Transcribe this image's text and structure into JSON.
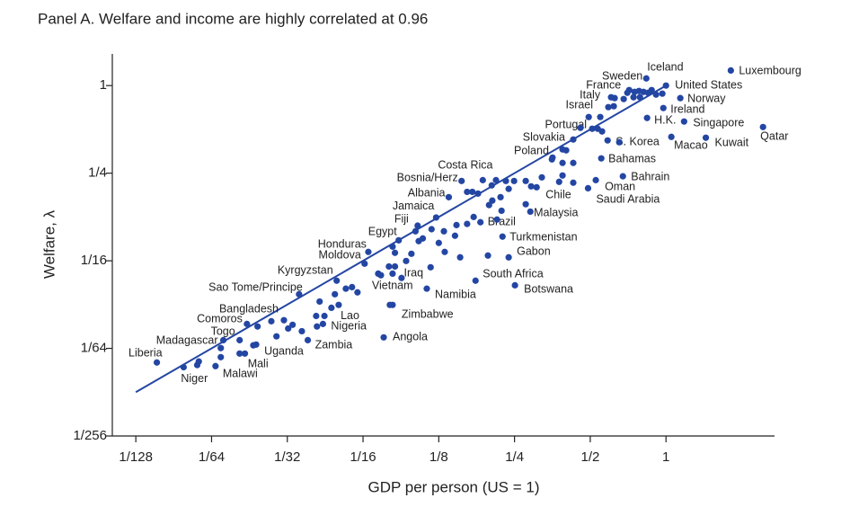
{
  "chart_data": {
    "type": "scatter",
    "title": "Panel A. Welfare and income are highly correlated at 0.96",
    "x_label": "GDP per person (US = 1)",
    "y_label": "Welfare, λ",
    "xlog": true,
    "ylog": true,
    "color": "#2446a3",
    "xlim": [
      0.0063,
      2.7
    ],
    "ylim": [
      0.00390625,
      1.65
    ],
    "xticks": [
      {
        "value": 0.0078125,
        "label": "1/128"
      },
      {
        "value": 0.015625,
        "label": "1/64"
      },
      {
        "value": 0.03125,
        "label": "1/32"
      },
      {
        "value": 0.0625,
        "label": "1/16"
      },
      {
        "value": 0.125,
        "label": "1/8"
      },
      {
        "value": 0.25,
        "label": "1/4"
      },
      {
        "value": 0.5,
        "label": "1/2"
      },
      1
    ],
    "yticks": [
      {
        "value": 0.00390625,
        "label": "1/256"
      },
      {
        "value": 0.015625,
        "label": "1/64"
      },
      {
        "value": 0.0625,
        "label": "1/16"
      },
      {
        "value": 0.25,
        "label": "1/4"
      },
      1
    ],
    "fit_line": {
      "x": [
        0.0078125,
        1
      ],
      "y": [
        0.0078125,
        1
      ]
    },
    "labels": [
      "Luxembourg",
      "Iceland",
      "Sweden",
      "France",
      "United States",
      "Italy",
      "Norway",
      "Israel",
      "Ireland",
      "H.K.",
      "Singapore",
      "Qatar",
      "Portugal",
      "Slovakia",
      "S. Korea",
      "Macao",
      "Kuwait",
      "Poland",
      "Bahamas",
      "Costa Rica",
      "Bosnia/Herz",
      "Bahrain",
      "Oman",
      "Albania",
      "Chile",
      "Saudi Arabia",
      "Jamaica",
      "Malaysia",
      "Fiji",
      "Brazil",
      "Egypt",
      "Turkmenistan",
      "Honduras",
      "Moldova",
      "Gabon",
      "Kyrgyzstan",
      "Iraq",
      "South Africa",
      "Sao Tome/Principe",
      "Vietnam",
      "Namibia",
      "Botswana",
      "Bangladesh",
      "Lao",
      "Comoros",
      "Zimbabwe",
      "Nigeria",
      "Togo",
      "Madagascar",
      "Angola",
      "Zambia",
      "Uganda",
      "Liberia",
      "Mali",
      "Niger",
      "Malawi",
      null,
      null,
      null,
      null,
      null,
      null,
      null,
      null,
      null,
      null,
      null,
      null,
      null,
      null,
      null,
      null,
      null,
      null,
      null,
      null,
      null,
      null,
      null,
      null,
      null,
      null,
      null,
      null,
      null,
      null,
      null,
      null,
      null,
      null,
      null,
      null,
      null,
      null,
      null,
      null,
      null,
      null,
      null,
      null,
      null,
      null,
      null,
      null,
      null,
      null,
      null,
      null,
      null,
      null,
      null,
      null,
      null,
      null,
      null,
      null,
      null,
      null,
      null,
      null,
      null,
      null,
      null,
      null,
      null,
      null,
      null,
      null,
      null,
      null,
      null,
      null,
      null,
      null,
      null,
      null,
      null,
      null,
      null,
      null,
      null,
      null,
      null
    ],
    "x": [
      1.81,
      0.835,
      0.714,
      0.702,
      1,
      0.605,
      1.14,
      0.59,
      0.976,
      0.841,
      1.18,
      2.43,
      0.509,
      0.428,
      0.586,
      1.05,
      1.44,
      0.354,
      0.553,
      0.187,
      0.154,
      0.674,
      0.526,
      0.137,
      0.306,
      0.49,
      0.122,
      0.277,
      0.103,
      0.183,
      0.0866,
      0.224,
      0.0656,
      0.0634,
      0.237,
      0.0491,
      0.0837,
      0.175,
      0.0348,
      0.0736,
      0.112,
      0.251,
      0.0303,
      0.0439,
      0.0216,
      0.0819,
      0.0433,
      0.0202,
      0.0174,
      0.0755,
      0.0377,
      0.0235,
      0.00947,
      0.0202,
      0.0121,
      0.0162,
      0.75,
      0.781,
      0.814,
      0.848,
      0.788,
      0.743,
      0.679,
      0.877,
      0.913,
      0.967,
      0.62,
      0.625,
      0.493,
      0.535,
      0.557,
      0.652,
      0.548,
      0.457,
      0.352,
      0.388,
      0.401,
      0.388,
      0.428,
      0.388,
      0.321,
      0.291,
      0.249,
      0.231,
      0.211,
      0.203,
      0.237,
      0.277,
      0.376,
      0.428,
      0.179,
      0.162,
      0.17,
      0.22,
      0.204,
      0.198,
      0.222,
      0.289,
      0.213,
      0.172,
      0.162,
      0.131,
      0.145,
      0.147,
      0.117,
      0.125,
      0.101,
      0.104,
      0.108,
      0.0819,
      0.0837,
      0.0927,
      0.0973,
      0.132,
      0.152,
      0.196,
      0.116,
      0.0792,
      0.0819,
      0.0718,
      0.0889,
      0.0565,
      0.0594,
      0.0534,
      0.0483,
      0.042,
      0.0407,
      0.05,
      0.0328,
      0.0283,
      0.027,
      0.0315,
      0.041,
      0.0357,
      0.0238,
      0.0229,
      0.0212,
      0.017,
      0.017,
      0.0139,
      0.0137,
      0.0799,
      0.0468
    ],
    "y": [
      1.27,
      1.12,
      0.931,
      0.892,
      1,
      0.831,
      0.82,
      0.711,
      0.701,
      0.599,
      0.566,
      0.519,
      0.505,
      0.426,
      0.42,
      0.444,
      0.438,
      0.32,
      0.316,
      0.224,
      0.221,
      0.238,
      0.224,
      0.171,
      0.2,
      0.197,
      0.124,
      0.153,
      0.109,
      0.115,
      0.0864,
      0.0916,
      0.0719,
      0.0597,
      0.066,
      0.0456,
      0.0571,
      0.0456,
      0.0368,
      0.0497,
      0.0402,
      0.0424,
      0.0244,
      0.0261,
      0.023,
      0.0311,
      0.023,
      0.0178,
      0.0178,
      0.0186,
      0.0178,
      0.0166,
      0.0125,
      0.0144,
      0.0116,
      0.0118,
      0.905,
      0.918,
      0.905,
      0.892,
      0.831,
      0.831,
      0.808,
      0.931,
      0.867,
      0.88,
      0.721,
      0.82,
      0.608,
      0.505,
      0.484,
      0.408,
      0.608,
      0.512,
      0.311,
      0.364,
      0.359,
      0.294,
      0.294,
      0.241,
      0.234,
      0.203,
      0.221,
      0.221,
      0.224,
      0.206,
      0.195,
      0.221,
      0.218,
      0.215,
      0.181,
      0.186,
      0.186,
      0.171,
      0.162,
      0.151,
      0.138,
      0.136,
      0.12,
      0.125,
      0.112,
      0.0997,
      0.0929,
      0.11,
      0.103,
      0.0829,
      0.0997,
      0.0853,
      0.089,
      0.0782,
      0.0709,
      0.0623,
      0.0698,
      0.0719,
      0.066,
      0.0679,
      0.0564,
      0.0571,
      0.051,
      0.051,
      0.0476,
      0.0412,
      0.0379,
      0.0402,
      0.0368,
      0.0328,
      0.0261,
      0.0311,
      0.0227,
      0.0189,
      0.024,
      0.0214,
      0.0221,
      0.0205,
      0.0221,
      0.0164,
      0.0144,
      0.0136,
      0.0157,
      0.0127,
      0.012,
      0.0311,
      0.0297
    ]
  }
}
